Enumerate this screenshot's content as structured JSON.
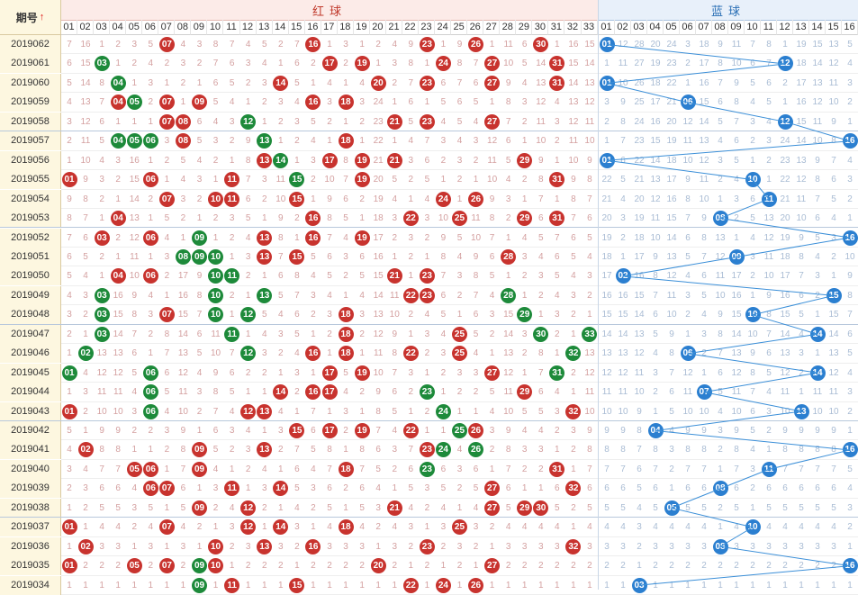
{
  "header": {
    "period_label": "期号",
    "sort_arrow": "↑",
    "red_title": "红球",
    "blue_title": "蓝球"
  },
  "red_numbers": [
    "01",
    "02",
    "03",
    "04",
    "05",
    "06",
    "07",
    "08",
    "09",
    "10",
    "11",
    "12",
    "13",
    "14",
    "15",
    "16",
    "17",
    "18",
    "19",
    "20",
    "21",
    "22",
    "23",
    "24",
    "25",
    "26",
    "27",
    "28",
    "29",
    "30",
    "31",
    "32",
    "33"
  ],
  "blue_numbers": [
    "01",
    "02",
    "03",
    "04",
    "05",
    "06",
    "07",
    "08",
    "09",
    "10",
    "11",
    "12",
    "13",
    "14",
    "15",
    "16"
  ],
  "colors": {
    "red_ball": "#c8332e",
    "repeat_ball": "#1d8a3a",
    "blue_ball": "#2b7fd0",
    "trend_line": "#3b8fd8"
  },
  "rows": [
    {
      "period": "2019062",
      "red": [
        7,
        16,
        23,
        26,
        30
      ],
      "repeat": [],
      "blue": 1
    },
    {
      "period": "2019061",
      "red": [
        17,
        19,
        24,
        27,
        31
      ],
      "repeat": [
        3
      ],
      "blue": 12
    },
    {
      "period": "2019060",
      "red": [
        14,
        20,
        23,
        27,
        31
      ],
      "repeat": [
        4
      ],
      "blue": 1
    },
    {
      "period": "2019059",
      "red": [
        4,
        7,
        9,
        16,
        18
      ],
      "repeat": [
        5
      ],
      "blue": 6
    },
    {
      "period": "2019058",
      "red": [
        7,
        8,
        21,
        23,
        27
      ],
      "repeat": [
        12
      ],
      "blue": 12
    },
    {
      "period": "2019057",
      "red": [
        8,
        18
      ],
      "repeat": [
        4,
        5,
        6,
        13
      ],
      "blue": 16
    },
    {
      "period": "2019056",
      "red": [
        13,
        17,
        19,
        21,
        29
      ],
      "repeat": [
        14
      ],
      "blue": 1
    },
    {
      "period": "2019055",
      "red": [
        1,
        6,
        11,
        19,
        31
      ],
      "repeat": [
        15
      ],
      "blue": 10
    },
    {
      "period": "2019054",
      "red": [
        7,
        10,
        11,
        15,
        24,
        26
      ],
      "repeat": [],
      "blue": 11
    },
    {
      "period": "2019053",
      "red": [
        4,
        16,
        22,
        25,
        29,
        31
      ],
      "repeat": [],
      "blue": 8
    },
    {
      "period": "2019052",
      "red": [
        3,
        6,
        13,
        16,
        19
      ],
      "repeat": [
        9
      ],
      "blue": 16
    },
    {
      "period": "2019051",
      "red": [
        13,
        15,
        28
      ],
      "repeat": [
        8,
        9,
        10
      ],
      "blue": 9
    },
    {
      "period": "2019050",
      "red": [
        4,
        6,
        21,
        23
      ],
      "repeat": [
        10,
        11
      ],
      "blue": 2
    },
    {
      "period": "2019049",
      "red": [
        22,
        23
      ],
      "repeat": [
        3,
        10,
        13,
        28
      ],
      "blue": 15
    },
    {
      "period": "2019048",
      "red": [
        7,
        18
      ],
      "repeat": [
        3,
        10,
        12,
        29
      ],
      "blue": 10
    },
    {
      "period": "2019047",
      "red": [
        18,
        25
      ],
      "repeat": [
        3,
        11,
        30,
        33
      ],
      "blue": 14
    },
    {
      "period": "2019046",
      "red": [
        16,
        18,
        22,
        25
      ],
      "repeat": [
        2,
        12,
        32
      ],
      "blue": 6
    },
    {
      "period": "2019045",
      "red": [
        17,
        19,
        27
      ],
      "repeat": [
        1,
        6,
        31
      ],
      "blue": 14
    },
    {
      "period": "2019044",
      "red": [
        14,
        16,
        17,
        29
      ],
      "repeat": [
        6,
        23
      ],
      "blue": 7
    },
    {
      "period": "2019043",
      "red": [
        1,
        12,
        13,
        32
      ],
      "repeat": [
        6,
        24
      ],
      "blue": 13
    },
    {
      "period": "2019042",
      "red": [
        15,
        17,
        19,
        22,
        26
      ],
      "repeat": [
        25
      ],
      "blue": 4
    },
    {
      "period": "2019041",
      "red": [
        2,
        9,
        13,
        23
      ],
      "repeat": [
        24,
        26
      ],
      "blue": 16
    },
    {
      "period": "2019040",
      "red": [
        5,
        6,
        9,
        18,
        31
      ],
      "repeat": [
        23
      ],
      "blue": 11
    },
    {
      "period": "2019039",
      "red": [
        6,
        7,
        11,
        14,
        27,
        32
      ],
      "repeat": [],
      "blue": 8
    },
    {
      "period": "2019038",
      "red": [
        9,
        12,
        21,
        27,
        29,
        30
      ],
      "repeat": [],
      "blue": 5
    },
    {
      "period": "2019037",
      "red": [
        1,
        7,
        12,
        14,
        18,
        25
      ],
      "repeat": [],
      "blue": 10
    },
    {
      "period": "2019036",
      "red": [
        2,
        10,
        13,
        16,
        23,
        32
      ],
      "repeat": [],
      "blue": 8
    },
    {
      "period": "2019035",
      "red": [
        1,
        5,
        7,
        10,
        20,
        27
      ],
      "repeat": [
        9
      ],
      "blue": 16
    },
    {
      "period": "2019034",
      "red": [
        11,
        15,
        22,
        24,
        26
      ],
      "repeat": [
        9
      ],
      "blue": 3
    }
  ]
}
